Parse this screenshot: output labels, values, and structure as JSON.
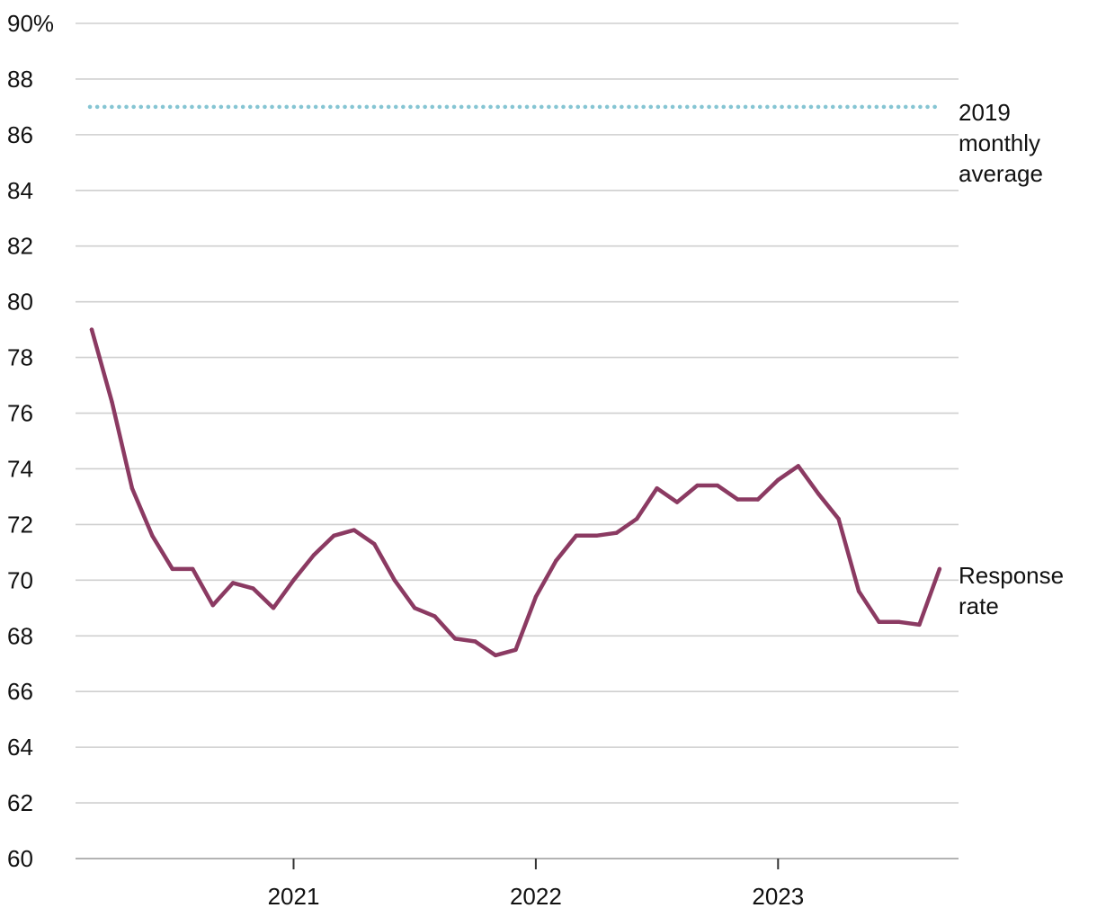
{
  "chart_data": {
    "type": "line",
    "title": "",
    "xlabel": "",
    "ylabel": "",
    "ylim": [
      60,
      90
    ],
    "yticks": [
      60,
      62,
      64,
      66,
      68,
      70,
      72,
      74,
      76,
      78,
      80,
      82,
      84,
      86,
      88,
      90
    ],
    "ytick_labels": [
      "60",
      "62",
      "64",
      "66",
      "68",
      "70",
      "72",
      "74",
      "76",
      "78",
      "80",
      "82",
      "84",
      "86",
      "88",
      "90%"
    ],
    "xticks": [
      "2021",
      "2022",
      "2023"
    ],
    "grid": true,
    "x": [
      "2020-03",
      "2020-04",
      "2020-05",
      "2020-06",
      "2020-07",
      "2020-08",
      "2020-09",
      "2020-10",
      "2020-11",
      "2020-12",
      "2021-01",
      "2021-02",
      "2021-03",
      "2021-04",
      "2021-05",
      "2021-06",
      "2021-07",
      "2021-08",
      "2021-09",
      "2021-10",
      "2021-11",
      "2021-12",
      "2022-01",
      "2022-02",
      "2022-03",
      "2022-04",
      "2022-05",
      "2022-06",
      "2022-07",
      "2022-08",
      "2022-09",
      "2022-10",
      "2022-11",
      "2022-12",
      "2023-01",
      "2023-02",
      "2023-03",
      "2023-04",
      "2023-05",
      "2023-06",
      "2023-07",
      "2023-08",
      "2023-09"
    ],
    "series": [
      {
        "name": "Response rate",
        "color": "#8b3a62",
        "values": [
          79.0,
          76.4,
          73.3,
          71.6,
          70.4,
          70.4,
          69.1,
          69.9,
          69.7,
          69.0,
          70.0,
          70.9,
          71.6,
          71.8,
          71.3,
          70.0,
          69.0,
          68.7,
          67.9,
          67.8,
          67.3,
          67.5,
          69.4,
          70.7,
          71.6,
          71.6,
          71.7,
          72.2,
          73.3,
          72.8,
          73.4,
          73.4,
          72.9,
          72.9,
          73.6,
          74.1,
          73.1,
          72.2,
          69.6,
          68.5,
          68.5,
          68.4,
          70.4
        ]
      }
    ],
    "reference_line": {
      "value": 87,
      "color": "#86c5d3",
      "style": "dotted"
    },
    "annotations": {
      "reference_label": [
        "2019",
        "monthly",
        "average"
      ],
      "series_label": [
        "Response",
        "rate"
      ]
    }
  }
}
